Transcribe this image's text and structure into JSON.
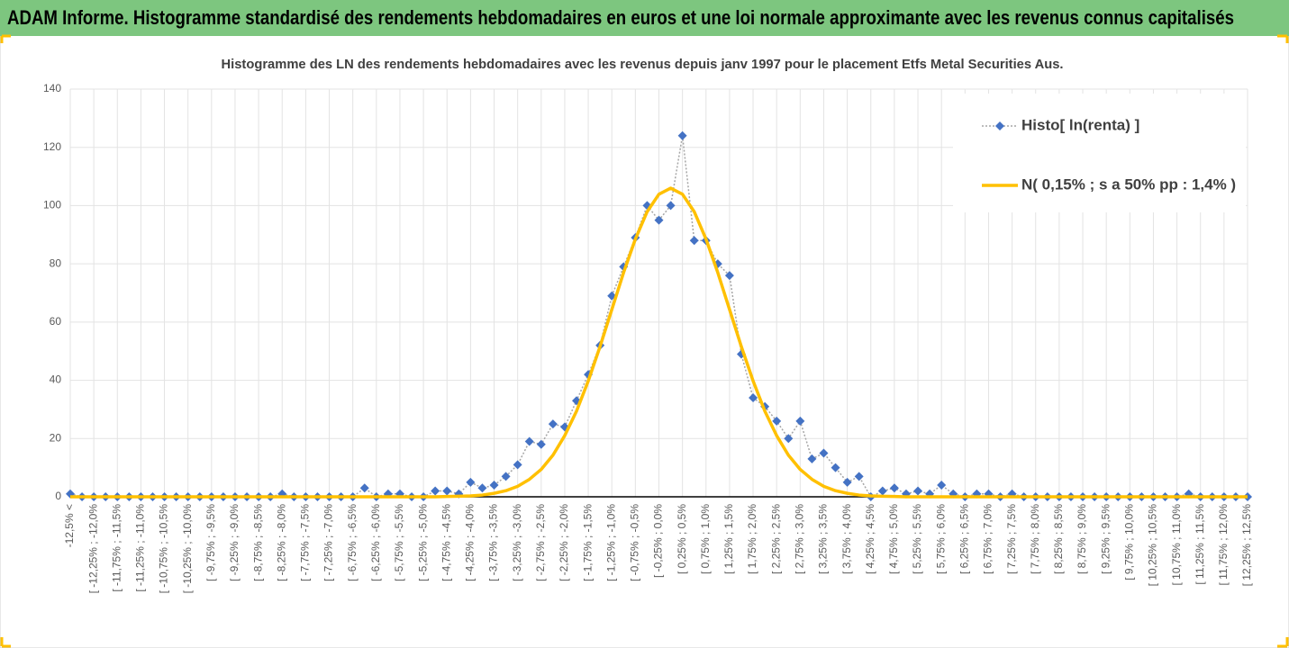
{
  "header": {
    "title": "ADAM Informe. Histogramme standardisé des rendements hebdomadaires en euros et une loi normale approximante avec les revenus connus capitalisés"
  },
  "chart_data": {
    "type": "line",
    "title": "Histogramme des LN des rendements hebdomadaires avec les revenus depuis janv 1997 pour le placement Etfs Metal Securities Aus.",
    "categories": [
      "-12,5% <",
      null,
      "[ -12,25% ; -12,0%",
      null,
      "[ -11,75% ; -11,5%",
      null,
      "[ -11,25% ; -11,0%",
      null,
      "[ -10,75% ; -10,5%",
      null,
      "[ -10,25% ; -10,0%",
      null,
      "[ -9,75% ; -9,5%",
      null,
      "[ -9,25% ; -9,0%",
      null,
      "[ -8,75% ; -8,5%",
      null,
      "[ -8,25% ; -8,0%",
      null,
      "[ -7,75% ; -7,5%",
      null,
      "[ -7,25% ; -7,0%",
      null,
      "[ -6,75% ; -6,5%",
      null,
      "[ -6,25% ; -6,0%",
      null,
      "[ -5,75% ; -5,5%",
      null,
      "[ -5,25% ; -5,0%",
      null,
      "[ -4,75% ; -4,5%",
      null,
      "[ -4,25% ; -4,0%",
      null,
      "[ -3,75% ; -3,5%",
      null,
      "[ -3,25% ; -3,0%",
      null,
      "[ -2,75% ; -2,5%",
      null,
      "[ -2,25% ; -2,0%",
      null,
      "[ -1,75% ; -1,5%",
      null,
      "[ -1,25% ; -1,0%",
      null,
      "[ -0,75% ; -0,5%",
      null,
      "[ -0,25% ; 0,0%",
      null,
      "[ 0,25% ; 0,5%",
      null,
      "[ 0,75% ; 1,0%",
      null,
      "[ 1,25% ; 1,5%",
      null,
      "[ 1,75% ; 2,0%",
      null,
      "[ 2,25% ; 2,5%",
      null,
      "[ 2,75% ; 3,0%",
      null,
      "[ 3,25% ; 3,5%",
      null,
      "[ 3,75% ; 4,0%",
      null,
      "[ 4,25% ; 4,5%",
      null,
      "[ 4,75% ; 5,0%",
      null,
      "[ 5,25% ; 5,5%",
      null,
      "[ 5,75% ; 6,0%",
      null,
      "[ 6,25% ; 6,5%",
      null,
      "[ 6,75% ; 7,0%",
      null,
      "[ 7,25% ; 7,5%",
      null,
      "[ 7,75% ; 8,0%",
      null,
      "[ 8,25% ; 8,5%",
      null,
      "[ 8,75% ; 9,0%",
      null,
      "[ 9,25% ; 9,5%",
      null,
      "[ 9,75% ; 10,0%",
      null,
      "[ 10,25% ; 10,5%",
      null,
      "[ 10,75% ; 11,0%",
      null,
      "[ 11,25% ; 11,5%",
      null,
      "[ 11,75% ; 12,0%",
      null,
      "[ 12,25% ; 12,5%"
    ],
    "series": [
      {
        "name": "Histo[ ln(renta) ]",
        "color": "#4472c4",
        "line_color": "#a5a5a5",
        "marker": "diamond",
        "dashed": true,
        "values": [
          1,
          0,
          0,
          0,
          0,
          0,
          0,
          0,
          0,
          0,
          0,
          0,
          0,
          0,
          0,
          0,
          0,
          0,
          1,
          0,
          0,
          0,
          0,
          0,
          0,
          3,
          0,
          1,
          1,
          0,
          0,
          2,
          2,
          1,
          5,
          3,
          4,
          7,
          11,
          19,
          18,
          25,
          24,
          33,
          42,
          52,
          69,
          79,
          89,
          100,
          95,
          100,
          124,
          88,
          88,
          80,
          76,
          49,
          34,
          31,
          26,
          20,
          26,
          13,
          15,
          10,
          5,
          7,
          0,
          2,
          3,
          1,
          2,
          1,
          4,
          1,
          0,
          1,
          1,
          0,
          1,
          0,
          0,
          0,
          0,
          0,
          0,
          0,
          0,
          0,
          0,
          0,
          0,
          0,
          0,
          1,
          0,
          0,
          0,
          0,
          0
        ]
      },
      {
        "name": "N( 0,15% ; s a 50% pp : 1,4% )",
        "color": "#ffc000",
        "marker": "none",
        "dashed": false,
        "values": [
          0,
          0,
          0,
          0,
          0,
          0,
          0,
          0,
          0,
          0,
          0,
          0,
          0,
          0,
          0,
          0,
          0,
          0,
          0,
          0,
          0,
          0,
          0,
          0,
          0,
          0,
          0,
          0,
          0,
          0,
          0,
          0,
          0.1,
          0.2,
          0.3,
          0.6,
          1.2,
          2.1,
          3.6,
          6.0,
          9.4,
          14.3,
          21.0,
          29.4,
          39.8,
          51.6,
          64.3,
          77.0,
          88.5,
          97.9,
          103.9,
          106,
          103.9,
          97.9,
          88.5,
          77.0,
          64.3,
          51.6,
          39.8,
          29.4,
          21.0,
          14.3,
          9.4,
          6.0,
          3.6,
          2.1,
          1.2,
          0.6,
          0.3,
          0.2,
          0.1,
          0,
          0,
          0,
          0,
          0,
          0,
          0,
          0,
          0,
          0,
          0,
          0,
          0,
          0,
          0,
          0,
          0,
          0,
          0,
          0,
          0,
          0,
          0,
          0,
          0,
          0,
          0,
          0,
          0,
          0
        ]
      }
    ],
    "ylim": [
      0,
      140
    ],
    "yticks": [
      0,
      20,
      40,
      60,
      80,
      100,
      120,
      140
    ],
    "grid": true,
    "legend": "top-right"
  }
}
